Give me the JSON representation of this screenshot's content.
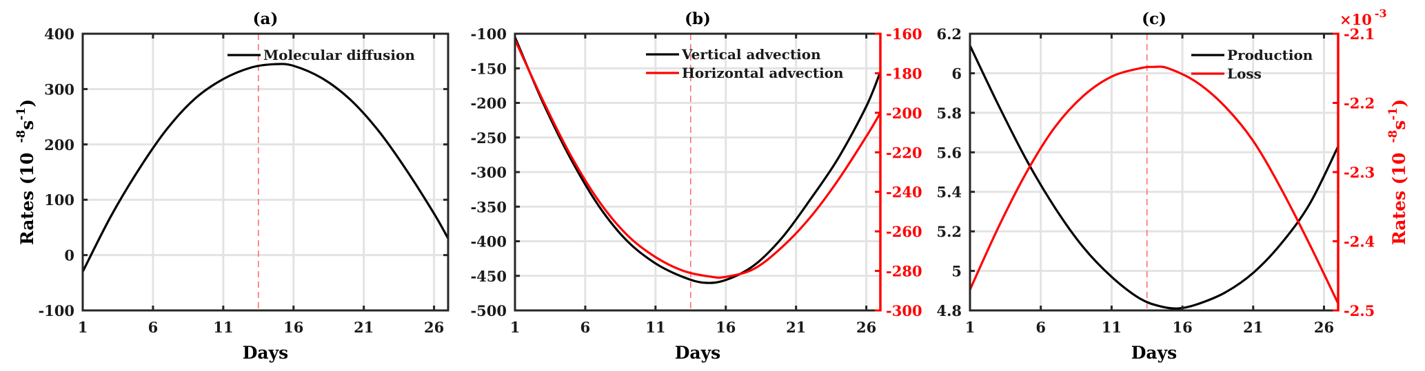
{
  "colors": {
    "black": "#000000",
    "red": "#ff0000",
    "grid": "#e3e3e3",
    "axis": "#262626",
    "marker_line": "#ff6666"
  },
  "chart_data": [
    {
      "id": "a",
      "type": "line",
      "title": "(a)",
      "xlabel": "Days",
      "ylabel": "Rates (10",
      "ylabel_sup1": "-8",
      "ylabel_mid": "s",
      "ylabel_sup2": "-1",
      "ylabel_end": ")",
      "xlim": [
        1,
        27
      ],
      "xticks": [
        1,
        6,
        11,
        16,
        21,
        26
      ],
      "xtick_labels": [
        "1",
        "6",
        "11",
        "16",
        "21",
        "26"
      ],
      "ylim": [
        -100,
        400
      ],
      "yticks": [
        -100,
        0,
        100,
        200,
        300,
        400
      ],
      "ytick_labels": [
        "-100",
        "0",
        "100",
        "200",
        "300",
        "400"
      ],
      "grid": true,
      "legend_position": "top-right",
      "vline_x": 13.5,
      "series": [
        {
          "name": "Molecular diffusion",
          "axis": "left",
          "color": "#000000",
          "x": [
            1,
            3,
            5,
            7,
            9,
            11,
            13,
            14.7,
            16,
            18,
            20,
            22,
            24,
            26,
            27
          ],
          "values": [
            -30,
            70,
            155,
            228,
            283,
            318,
            339,
            345,
            342,
            320,
            282,
            226,
            155,
            75,
            30
          ]
        }
      ]
    },
    {
      "id": "b",
      "type": "line",
      "title": "(b)",
      "xlabel": "Days",
      "xlim": [
        1,
        27
      ],
      "xticks": [
        1,
        6,
        11,
        16,
        21,
        26
      ],
      "xtick_labels": [
        "1",
        "6",
        "11",
        "16",
        "21",
        "26"
      ],
      "ylim": [
        -500,
        -100
      ],
      "yticks": [
        -500,
        -450,
        -400,
        -350,
        -300,
        -250,
        -200,
        -150,
        -100
      ],
      "ytick_labels": [
        "-500",
        "-450",
        "-400",
        "-350",
        "-300",
        "-250",
        "-200",
        "-150",
        "-100"
      ],
      "y2lim": [
        -300,
        -160
      ],
      "y2ticks": [
        -300,
        -280,
        -260,
        -240,
        -220,
        -200,
        -180,
        -160
      ],
      "y2tick_labels": [
        "-300",
        "-280",
        "-260",
        "-240",
        "-220",
        "-200",
        "-180",
        "-160"
      ],
      "grid": true,
      "legend_position": "top-right",
      "vline_x": 13.5,
      "series": [
        {
          "name": "Vertical advection",
          "axis": "left",
          "color": "#000000",
          "x": [
            1,
            3,
            5,
            7,
            9,
            11,
            13,
            14.5,
            16,
            18,
            20,
            22,
            24,
            26,
            27
          ],
          "values": [
            -105,
            -200,
            -282,
            -350,
            -400,
            -432,
            -452,
            -460,
            -456,
            -435,
            -395,
            -340,
            -280,
            -205,
            -155
          ]
        },
        {
          "name": "Horizontal advection",
          "axis": "right",
          "color": "#ff0000",
          "x": [
            1,
            3,
            5,
            7,
            9,
            11,
            13,
            15,
            16,
            18,
            20,
            22,
            24,
            26,
            27
          ],
          "values": [
            -163,
            -194,
            -222,
            -245,
            -262,
            -273,
            -280,
            -283,
            -283,
            -279,
            -268,
            -253,
            -234,
            -212,
            -200
          ]
        }
      ]
    },
    {
      "id": "c",
      "type": "line",
      "title": "(c)",
      "xlabel": "Days",
      "xlim": [
        1,
        27
      ],
      "xticks": [
        1,
        6,
        11,
        16,
        21,
        26
      ],
      "xtick_labels": [
        "1",
        "6",
        "11",
        "16",
        "21",
        "26"
      ],
      "ylim": [
        4.8,
        6.2
      ],
      "yticks": [
        4.8,
        5.0,
        5.2,
        5.4,
        5.6,
        5.8,
        6.0,
        6.2
      ],
      "ytick_labels": [
        "4.8",
        "5",
        "5.2",
        "5.4",
        "5.6",
        "5.8",
        "6",
        "6.2"
      ],
      "y2lim": [
        -2.5,
        -2.1
      ],
      "y2ticks": [
        -2.5,
        -2.4,
        -2.3,
        -2.2,
        -2.1
      ],
      "y2tick_labels": [
        "-2.5",
        "-2.4",
        "-2.3",
        "-2.2",
        "-2.1"
      ],
      "y2_exponent_base": "×10",
      "y2_exponent": "-3",
      "y2label": "Rates (10",
      "y2label_sup1": "-8",
      "y2label_mid": "s",
      "y2label_sup2": "-1",
      "y2label_end": ")",
      "grid": true,
      "legend_position": "top-right",
      "vline_x": 13.5,
      "series": [
        {
          "name": "Production",
          "axis": "left",
          "color": "#000000",
          "x": [
            1,
            3,
            5,
            7,
            9,
            11,
            13,
            14.5,
            15.7,
            17,
            19,
            21,
            23,
            25,
            27
          ],
          "values": [
            6.14,
            5.84,
            5.56,
            5.32,
            5.12,
            4.97,
            4.86,
            4.82,
            4.81,
            4.83,
            4.89,
            4.99,
            5.14,
            5.34,
            5.63
          ]
        },
        {
          "name": "Loss",
          "axis": "right",
          "color": "#ff0000",
          "x": [
            1,
            3,
            5,
            7,
            9,
            11,
            13,
            14,
            15,
            17,
            19,
            21,
            23,
            25,
            27
          ],
          "values": [
            -2.47,
            -2.38,
            -2.3,
            -2.235,
            -2.19,
            -2.162,
            -2.15,
            -2.148,
            -2.15,
            -2.17,
            -2.205,
            -2.255,
            -2.325,
            -2.405,
            -2.49
          ]
        }
      ]
    }
  ]
}
